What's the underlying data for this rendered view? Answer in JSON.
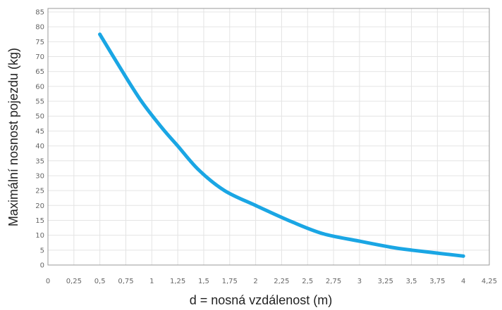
{
  "chart_data": {
    "type": "line",
    "title": "",
    "xlabel": "d = nosná vzdálenost (m)",
    "ylabel": "Maximální nosnost pojezdu (kg)",
    "xlim": [
      0,
      4.25
    ],
    "ylim": [
      0,
      85
    ],
    "x_ticks": [
      "0",
      "0,25",
      "0,5",
      "0,75",
      "1",
      "1,25",
      "1,5",
      "1,75",
      "2",
      "2,25",
      "2,5",
      "2,75",
      "3",
      "3,25",
      "3,5",
      "3,75",
      "4",
      "4,25"
    ],
    "y_ticks": [
      "0",
      "5",
      "10",
      "15",
      "20",
      "25",
      "30",
      "35",
      "40",
      "45",
      "50",
      "55",
      "60",
      "65",
      "70",
      "75",
      "80",
      "85"
    ],
    "grid": true,
    "legend": "none",
    "series": [
      {
        "name": "",
        "color": "#1aa6e4",
        "x": [
          0.5,
          0.7,
          0.9,
          1.1,
          1.25,
          1.45,
          1.7,
          2.0,
          2.35,
          2.65,
          3.0,
          3.3,
          3.5,
          3.75,
          4.0
        ],
        "y": [
          77.5,
          66,
          55,
          46,
          40,
          32,
          25,
          20,
          14.5,
          10.5,
          8,
          6,
          5,
          4,
          3
        ]
      }
    ]
  }
}
